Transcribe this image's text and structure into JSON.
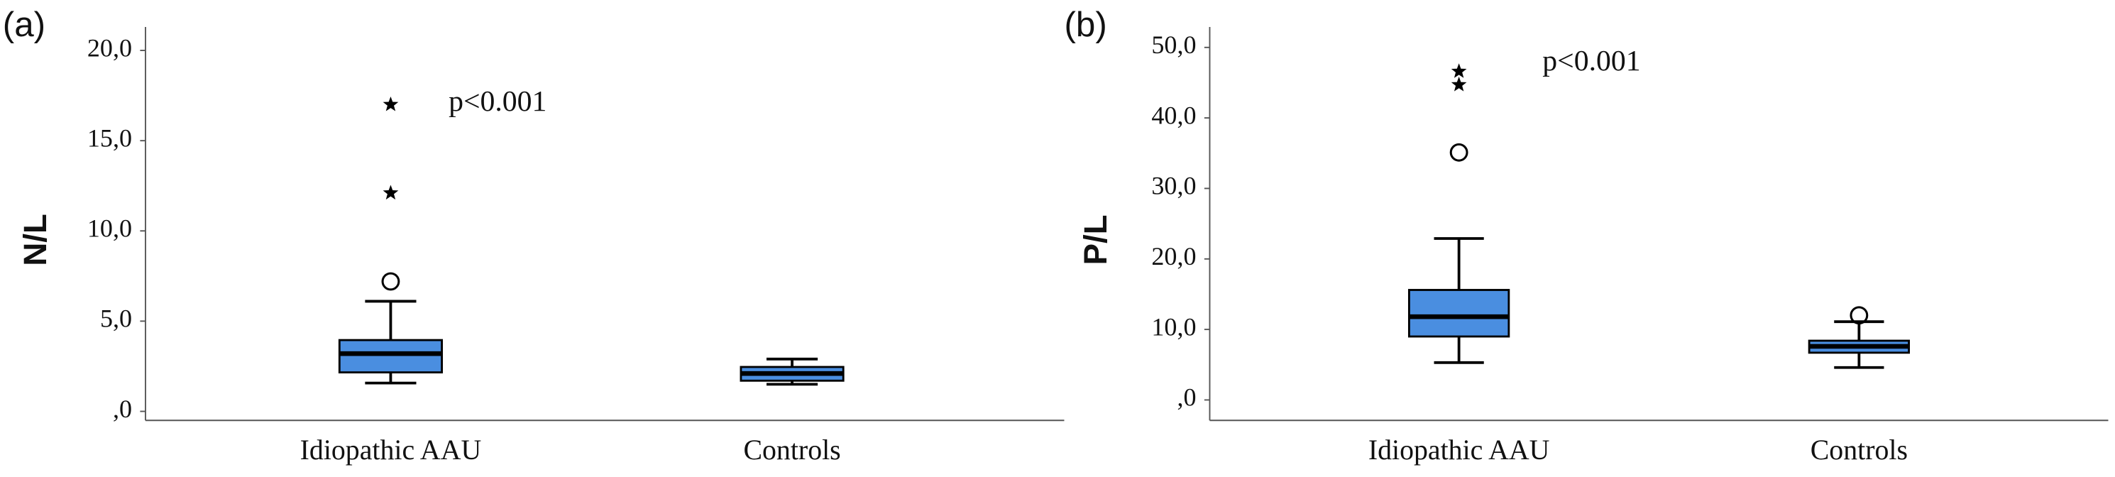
{
  "chart_data": [
    {
      "type": "box",
      "panel_label": "(a)",
      "y_label": "N/L",
      "annotation": "p<0.001",
      "categories": [
        "Idiopathic AAU",
        "Controls"
      ],
      "color": "#4a8ee0",
      "boxes": [
        {
          "min": 1.57,
          "q1": 2.16,
          "median": 3.2,
          "q3": 3.95,
          "max": 6.1,
          "outliers": [
            7.2
          ],
          "extremes": [
            12.1,
            17.0
          ]
        },
        {
          "min": 1.5,
          "q1": 1.7,
          "median": 2.1,
          "q3": 2.46,
          "max": 2.9,
          "outliers": [],
          "extremes": []
        }
      ],
      "ylim": [
        -0.5,
        21.3
      ],
      "yticks": [
        {
          "value": 0,
          "label": ",0"
        },
        {
          "value": 5,
          "label": "5,0"
        },
        {
          "value": 10,
          "label": "10,0"
        },
        {
          "value": 15,
          "label": "15,0"
        },
        {
          "value": 20,
          "label": "20,0"
        }
      ]
    },
    {
      "type": "box",
      "panel_label": "(b)",
      "y_label": "P/L",
      "annotation": "p<0.001",
      "categories": [
        "Idiopathic AAU",
        "Controls"
      ],
      "color": "#4a8ee0",
      "boxes": [
        {
          "min": 5.3,
          "q1": 9.0,
          "median": 11.8,
          "q3": 15.6,
          "max": 22.9,
          "outliers": [
            35.1
          ],
          "extremes": [
            44.7,
            46.6
          ]
        },
        {
          "min": 4.6,
          "q1": 6.7,
          "median": 7.6,
          "q3": 8.4,
          "max": 11.1,
          "outliers": [
            12.0
          ],
          "extremes": []
        }
      ],
      "ylim": [
        -2.9,
        52.9
      ],
      "yticks": [
        {
          "value": 0,
          "label": ",0"
        },
        {
          "value": 10,
          "label": "10,0"
        },
        {
          "value": 20,
          "label": "20,0"
        },
        {
          "value": 30,
          "label": "30,0"
        },
        {
          "value": 40,
          "label": "40,0"
        },
        {
          "value": 50,
          "label": "50,0"
        }
      ]
    }
  ]
}
